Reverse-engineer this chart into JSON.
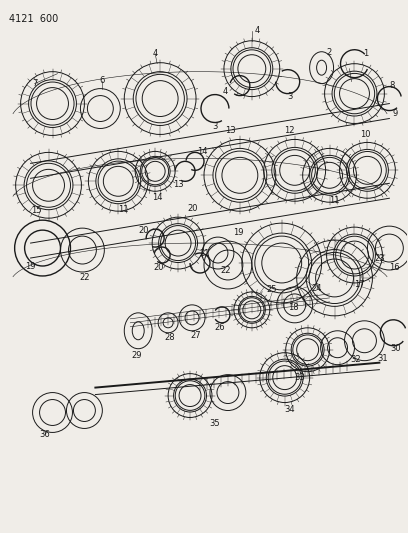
{
  "title": "4121  600",
  "bg_color": "#f0ede8",
  "line_color": "#1a1a1a",
  "title_fontsize": 7,
  "label_fontsize": 6,
  "figsize": [
    4.08,
    5.33
  ],
  "dpi": 100
}
